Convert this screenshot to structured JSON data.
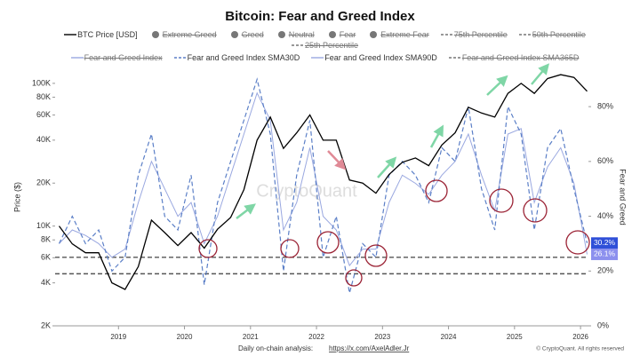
{
  "chart_data": {
    "type": "line",
    "title": "Bitcoin: Fear and Greed Index",
    "y_label": "Price ($)",
    "y2_label": "Fear and Greed",
    "watermark": "CryptoQuant",
    "footer_text": "Daily on-chain analysis:",
    "footer_link": "https://x.com/AxelAdler.Jr",
    "copyright": "© CryptoQuant. All rights reserved",
    "y_log": true,
    "legend_hidden": [
      "Extreme Greed",
      "Greed",
      "Neutral",
      "Fear",
      "Extreme Fear",
      "75th Percentile",
      "50th Percentile",
      "25th Percentile",
      "Fear and Greed Index",
      "Fear and Greed Index SMA365D"
    ],
    "reference_lines": [
      25,
      19
    ],
    "x": [
      2018.1,
      2018.3,
      2018.5,
      2018.7,
      2018.9,
      2019.1,
      2019.3,
      2019.5,
      2019.7,
      2019.9,
      2020.1,
      2020.3,
      2020.5,
      2020.7,
      2020.9,
      2021.1,
      2021.3,
      2021.5,
      2021.7,
      2021.9,
      2022.1,
      2022.3,
      2022.5,
      2022.7,
      2022.9,
      2023.1,
      2023.3,
      2023.5,
      2023.7,
      2023.9,
      2024.1,
      2024.3,
      2024.5,
      2024.7,
      2024.9,
      2025.1,
      2025.3,
      2025.5,
      2025.7,
      2025.9,
      2026.1
    ],
    "xlim": [
      2018.04,
      2026.12
    ],
    "xticks": [
      2019,
      2020,
      2021,
      2022,
      2023,
      2024,
      2025,
      2026
    ],
    "ylim": [
      2000,
      122000
    ],
    "yticks": [
      {
        "value": 2000,
        "label": "2K"
      },
      {
        "value": 4000,
        "label": "4K"
      },
      {
        "value": 6000,
        "label": "6K"
      },
      {
        "value": 8000,
        "label": "8K"
      },
      {
        "value": 10000,
        "label": "10K"
      },
      {
        "value": 20000,
        "label": "20K"
      },
      {
        "value": 40000,
        "label": "40K"
      },
      {
        "value": 60000,
        "label": "60K"
      },
      {
        "value": 80000,
        "label": "80K"
      },
      {
        "value": 100000,
        "label": "100K"
      }
    ],
    "y2lim": [
      0,
      93
    ],
    "y2ticks": [
      {
        "value": 0,
        "label": "0%"
      },
      {
        "value": 20,
        "label": "20%"
      },
      {
        "value": 40,
        "label": "40%"
      },
      {
        "value": 60,
        "label": "60%"
      },
      {
        "value": 80,
        "label": "80%"
      }
    ],
    "series": [
      {
        "name": "BTC Price [USD]",
        "color": "#000000",
        "values": [
          10000,
          7500,
          6500,
          6500,
          4000,
          3600,
          5200,
          11000,
          9000,
          7300,
          9000,
          7000,
          9500,
          11500,
          18000,
          40000,
          58000,
          35000,
          45000,
          60000,
          40000,
          40000,
          21000,
          20000,
          17000,
          23000,
          28000,
          30000,
          26500,
          37000,
          45000,
          68000,
          62000,
          58000,
          85000,
          100000,
          85000,
          108000,
          115000,
          110000,
          88000
        ]
      },
      {
        "name": "Fear and Greed Index SMA30D",
        "color": "#5b7fc7",
        "axis": "y2",
        "dashed": true,
        "end_label": "30.2%",
        "values": [
          30,
          40,
          30,
          35,
          20,
          25,
          55,
          70,
          40,
          35,
          55,
          15,
          45,
          60,
          75,
          90,
          70,
          20,
          55,
          75,
          25,
          40,
          12,
          30,
          25,
          55,
          60,
          55,
          45,
          65,
          60,
          80,
          50,
          35,
          80,
          70,
          35,
          65,
          72,
          50,
          30.2
        ]
      },
      {
        "name": "Fear and Greed Index SMA90D",
        "color": "#9aa8e0",
        "axis": "y2",
        "end_label": "26.1%",
        "values": [
          30,
          35,
          33,
          30,
          25,
          28,
          45,
          60,
          50,
          40,
          45,
          30,
          40,
          55,
          70,
          85,
          75,
          35,
          45,
          65,
          40,
          35,
          22,
          28,
          28,
          45,
          55,
          52,
          48,
          55,
          60,
          70,
          55,
          42,
          70,
          72,
          45,
          58,
          65,
          52,
          26.1
        ]
      }
    ]
  }
}
